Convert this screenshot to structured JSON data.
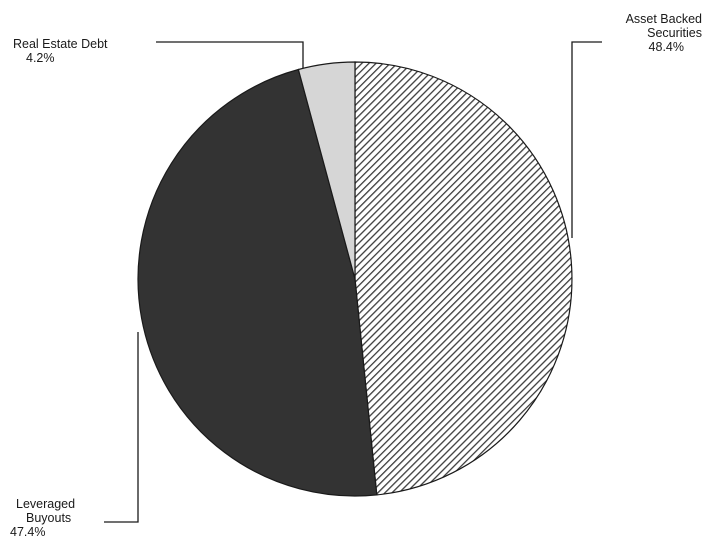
{
  "chart_data": {
    "type": "pie",
    "title": "",
    "slices": [
      {
        "label_lines": [
          "Asset Backed",
          "Securities"
        ],
        "pct_text": "48.4%",
        "value": 48.4,
        "fill": "hatch",
        "color": "#3c3c3c"
      },
      {
        "label_lines": [
          "Leveraged",
          "Buyouts"
        ],
        "pct_text": "47.4%",
        "value": 47.4,
        "fill": "solid",
        "color": "#333333"
      },
      {
        "label_lines": [
          "Real Estate Debt"
        ],
        "pct_text": "4.2%",
        "value": 4.2,
        "fill": "solid",
        "color": "#d6d6d6"
      }
    ],
    "start_angle_deg": 0,
    "direction": "clockwise",
    "legend": "none",
    "leader_lines": true,
    "colors": {
      "outline": "#1a1a1a",
      "hatch_bg": "#ffffff",
      "hatch_line": "#3c3c3c"
    }
  }
}
